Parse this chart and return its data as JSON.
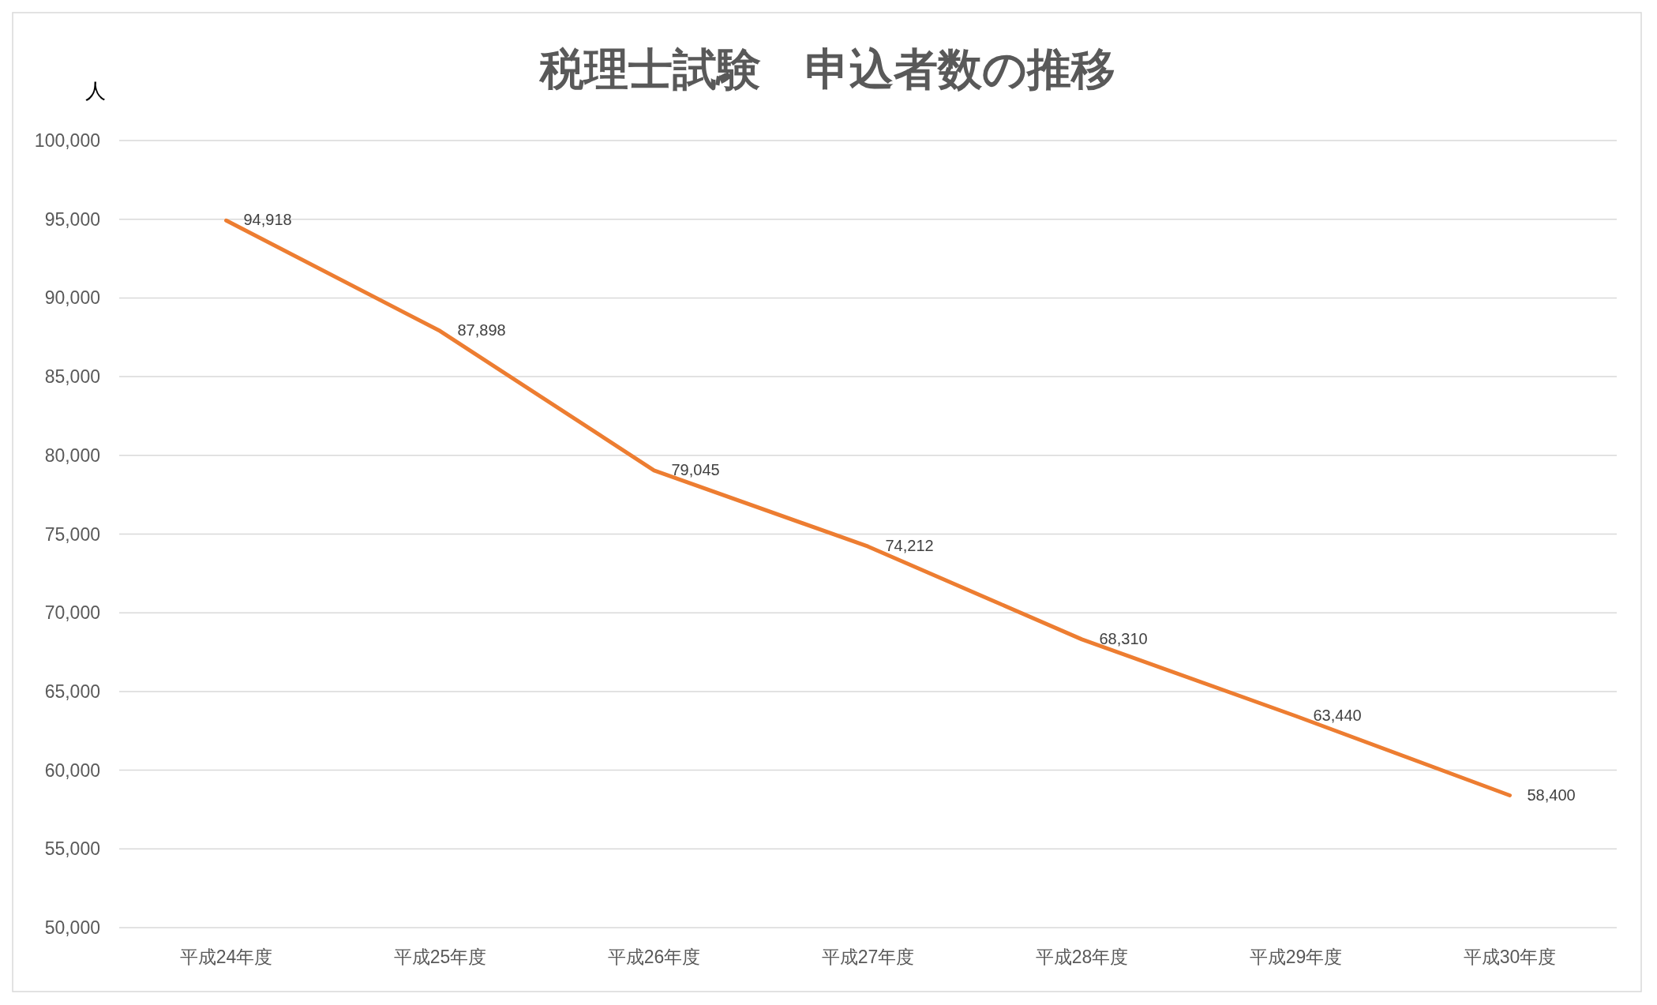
{
  "chart_data": {
    "type": "line",
    "title": "税理士試験　申込者数の推移",
    "ylabel": "人",
    "categories": [
      "平成24年度",
      "平成25年度",
      "平成26年度",
      "平成27年度",
      "平成28年度",
      "平成29年度",
      "平成30年度"
    ],
    "series": [
      {
        "color": "#ed7d31",
        "values": [
          94918,
          87898,
          79045,
          74212,
          68310,
          63440,
          58400
        ],
        "value_labels": [
          "94,918",
          "87,898",
          "79,045",
          "74,212",
          "68,310",
          "63,440",
          "58,400"
        ]
      }
    ],
    "ylim": [
      50000,
      100000
    ],
    "yticks": [
      {
        "value": 50000,
        "label": "50,000"
      },
      {
        "value": 55000,
        "label": "55,000"
      },
      {
        "value": 60000,
        "label": "60,000"
      },
      {
        "value": 65000,
        "label": "65,000"
      },
      {
        "value": 70000,
        "label": "70,000"
      },
      {
        "value": 75000,
        "label": "75,000"
      },
      {
        "value": 80000,
        "label": "80,000"
      },
      {
        "value": 85000,
        "label": "85,000"
      },
      {
        "value": 90000,
        "label": "90,000"
      },
      {
        "value": 95000,
        "label": "95,000"
      },
      {
        "value": 100000,
        "label": "100,000"
      }
    ],
    "grid": "y",
    "marker": "none",
    "line_style": "solid"
  }
}
